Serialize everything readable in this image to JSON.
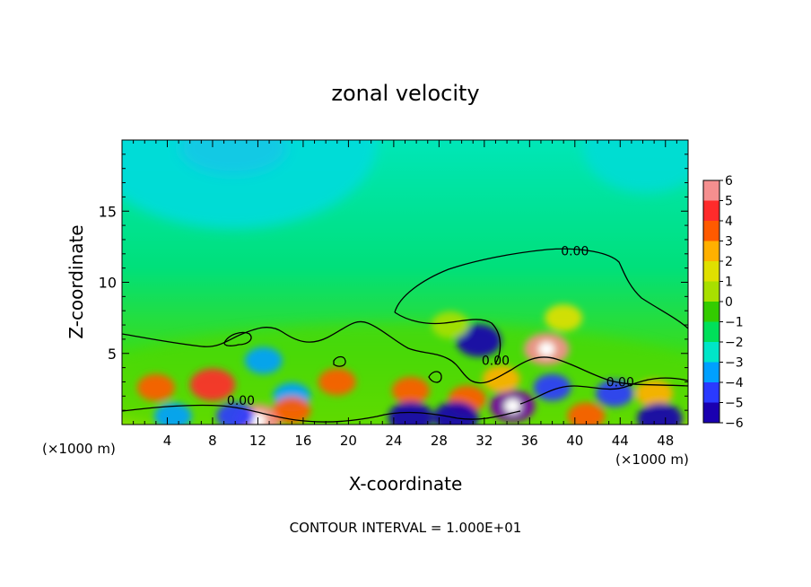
{
  "chart_data": {
    "type": "heatmap",
    "title": "zonal velocity",
    "xlabel": "X-coordinate",
    "ylabel": "Z-coordinate",
    "x_unit_left": "(×1000 m)",
    "x_unit_right": "(×1000 m)",
    "footer": "CONTOUR INTERVAL = 1.000E+01",
    "xlim": [
      0,
      50
    ],
    "ylim": [
      0,
      20
    ],
    "x_ticks": [
      4,
      8,
      12,
      16,
      20,
      24,
      28,
      32,
      36,
      40,
      44,
      48
    ],
    "y_ticks": [
      5,
      10,
      15
    ],
    "colorbar": {
      "levels": [
        6,
        5,
        4,
        3,
        2,
        1,
        0,
        -1,
        -2,
        -3,
        -4,
        -5,
        -6
      ],
      "colors": [
        "#f58f8f",
        "#ff2b2b",
        "#ff5a00",
        "#ffb000",
        "#e0e000",
        "#a8e000",
        "#33cc00",
        "#00e05a",
        "#00e6c8",
        "#00a0ff",
        "#2a3aff",
        "#1a00b0",
        "#7a00a8"
      ]
    },
    "contour_label": "0.00",
    "contour_labels": [
      {
        "x": 40.0,
        "z": 12.2,
        "text": "0.00"
      },
      {
        "x": 33.0,
        "z": 4.5,
        "text": "0.00"
      },
      {
        "x": 44.0,
        "z": 3.0,
        "text": "0.00"
      },
      {
        "x": 10.5,
        "z": 1.7,
        "text": "0.00"
      }
    ],
    "features": [
      {
        "x": 37.5,
        "z": 5.3,
        "value": 6
      },
      {
        "x": 31.5,
        "z": 5.9,
        "value": -5
      },
      {
        "x": 34.5,
        "z": 1.3,
        "value": -6
      },
      {
        "x": 12.0,
        "z": 0.3,
        "value": 6
      },
      {
        "x": 3.0,
        "z": 2.6,
        "value": 4
      },
      {
        "x": 8.0,
        "z": 2.8,
        "value": 5
      },
      {
        "x": 12.5,
        "z": 4.5,
        "value": -3
      },
      {
        "x": 15.0,
        "z": 2.0,
        "value": -3
      },
      {
        "x": 15.0,
        "z": 1.0,
        "value": 4
      },
      {
        "x": 19.0,
        "z": 3.0,
        "value": 4
      },
      {
        "x": 25.5,
        "z": 2.4,
        "value": 4
      },
      {
        "x": 25.5,
        "z": 0.5,
        "value": -5
      },
      {
        "x": 30.5,
        "z": 1.8,
        "value": 4
      },
      {
        "x": 29.5,
        "z": 0.5,
        "value": -5
      },
      {
        "x": 33.5,
        "z": 3.2,
        "value": 3
      },
      {
        "x": 38.0,
        "z": 2.6,
        "value": -4
      },
      {
        "x": 41.0,
        "z": 0.6,
        "value": 4
      },
      {
        "x": 43.5,
        "z": 2.2,
        "value": -4
      },
      {
        "x": 47.0,
        "z": 2.2,
        "value": 3
      },
      {
        "x": 47.5,
        "z": 0.4,
        "value": -5
      },
      {
        "x": 10.0,
        "z": 0.6,
        "value": -4
      },
      {
        "x": 4.5,
        "z": 0.6,
        "value": -3
      },
      {
        "x": 39.0,
        "z": 7.5,
        "value": 2
      },
      {
        "x": 29.0,
        "z": 7.0,
        "value": 1
      }
    ]
  }
}
